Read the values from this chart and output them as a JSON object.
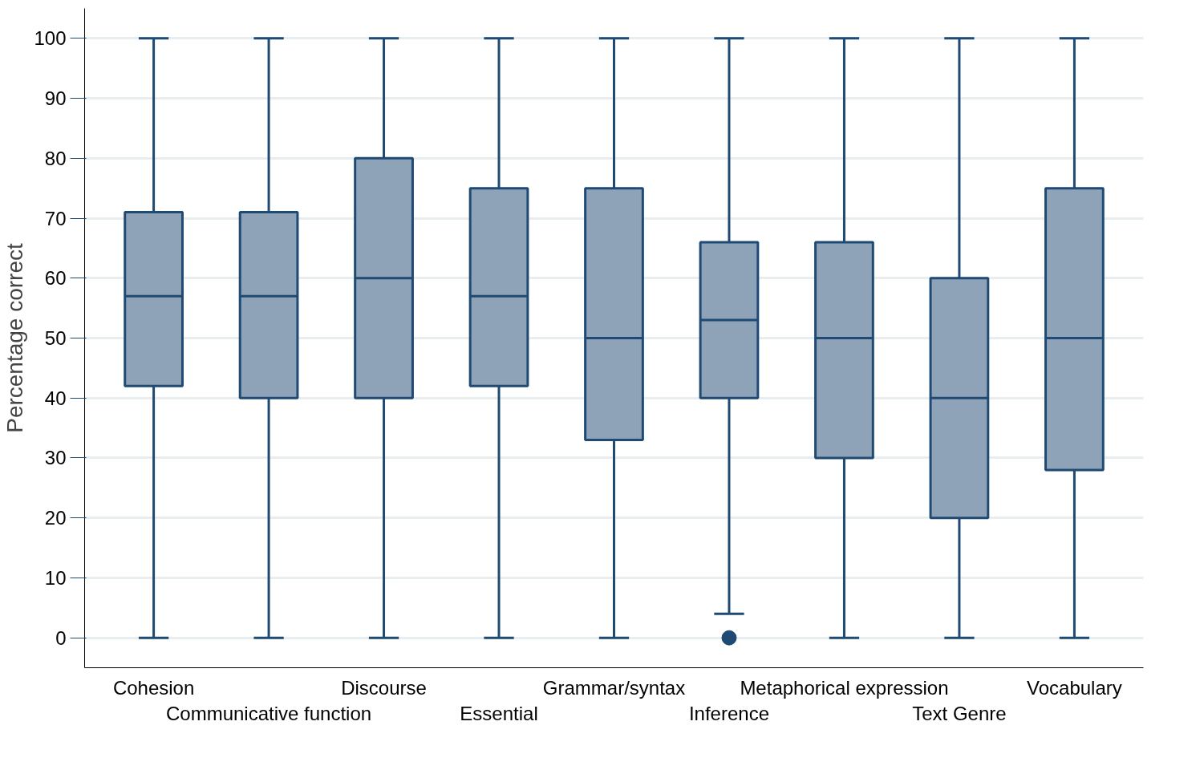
{
  "chart_data": {
    "type": "box",
    "ylabel": "Percentage correct",
    "categories": [
      "Cohesion",
      "Communicative function",
      "Discourse",
      "Essential",
      "Grammar/syntax",
      "Inference",
      "Metaphorical expression",
      "Text Genre",
      "Vocabulary"
    ],
    "series": [
      {
        "color": "#8ea3b8",
        "boxes": [
          {
            "low": 0,
            "q1": 42,
            "median": 57,
            "q3": 71,
            "high": 100
          },
          {
            "low": 0,
            "q1": 40,
            "median": 57,
            "q3": 71,
            "high": 100
          },
          {
            "low": 0,
            "q1": 40,
            "median": 60,
            "q3": 80,
            "high": 100
          },
          {
            "low": 0,
            "q1": 42,
            "median": 57,
            "q3": 75,
            "high": 100
          },
          {
            "low": 0,
            "q1": 33,
            "median": 50,
            "q3": 75,
            "high": 100
          },
          {
            "low": 4,
            "q1": 40,
            "median": 53,
            "q3": 66,
            "high": 100,
            "outliers": [
              0
            ]
          },
          {
            "low": 0,
            "q1": 30,
            "median": 50,
            "q3": 66,
            "high": 100
          },
          {
            "low": 0,
            "q1": 20,
            "median": 40,
            "q3": 60,
            "high": 100
          },
          {
            "low": 0,
            "q1": 28,
            "median": 50,
            "q3": 75,
            "high": 100
          }
        ]
      }
    ],
    "ylim": [
      -5,
      105
    ],
    "yticks": [
      0,
      10,
      20,
      30,
      40,
      50,
      60,
      70,
      80,
      90,
      100
    ],
    "grid": "y"
  }
}
